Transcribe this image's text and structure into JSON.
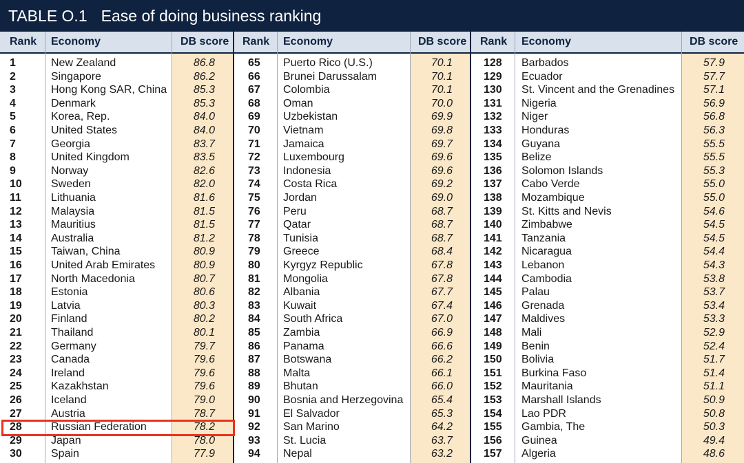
{
  "title": {
    "label": "TABLE O.1",
    "text": "Ease of doing business ranking"
  },
  "headers": {
    "rank": "Rank",
    "economy": "Economy",
    "score": "DB score"
  },
  "colors": {
    "title_bg": "#0f2340",
    "header_bg": "#d8e1ec",
    "score_bg": "#fbe8c8",
    "highlight": "#e8331c"
  },
  "highlighted_rank": "28",
  "columns": [
    [
      [
        "1",
        "New Zealand",
        "86.8"
      ],
      [
        "2",
        "Singapore",
        "86.2"
      ],
      [
        "3",
        "Hong Kong SAR, China",
        "85.3"
      ],
      [
        "4",
        "Denmark",
        "85.3"
      ],
      [
        "5",
        "Korea, Rep.",
        "84.0"
      ],
      [
        "6",
        "United States",
        "84.0"
      ],
      [
        "7",
        "Georgia",
        "83.7"
      ],
      [
        "8",
        "United Kingdom",
        "83.5"
      ],
      [
        "9",
        "Norway",
        "82.6"
      ],
      [
        "10",
        "Sweden",
        "82.0"
      ],
      [
        "11",
        "Lithuania",
        "81.6"
      ],
      [
        "12",
        "Malaysia",
        "81.5"
      ],
      [
        "13",
        "Mauritius",
        "81.5"
      ],
      [
        "14",
        "Australia",
        "81.2"
      ],
      [
        "15",
        "Taiwan, China",
        "80.9"
      ],
      [
        "16",
        "United Arab Emirates",
        "80.9"
      ],
      [
        "17",
        "North Macedonia",
        "80.7"
      ],
      [
        "18",
        "Estonia",
        "80.6"
      ],
      [
        "19",
        "Latvia",
        "80.3"
      ],
      [
        "20",
        "Finland",
        "80.2"
      ],
      [
        "21",
        "Thailand",
        "80.1"
      ],
      [
        "22",
        "Germany",
        "79.7"
      ],
      [
        "23",
        "Canada",
        "79.6"
      ],
      [
        "24",
        "Ireland",
        "79.6"
      ],
      [
        "25",
        "Kazakhstan",
        "79.6"
      ],
      [
        "26",
        "Iceland",
        "79.0"
      ],
      [
        "27",
        "Austria",
        "78.7"
      ],
      [
        "28",
        "Russian Federation",
        "78.2"
      ],
      [
        "29",
        "Japan",
        "78.0"
      ],
      [
        "30",
        "Spain",
        "77.9"
      ]
    ],
    [
      [
        "65",
        "Puerto Rico (U.S.)",
        "70.1"
      ],
      [
        "66",
        "Brunei Darussalam",
        "70.1"
      ],
      [
        "67",
        "Colombia",
        "70.1"
      ],
      [
        "68",
        "Oman",
        "70.0"
      ],
      [
        "69",
        "Uzbekistan",
        "69.9"
      ],
      [
        "70",
        "Vietnam",
        "69.8"
      ],
      [
        "71",
        "Jamaica",
        "69.7"
      ],
      [
        "72",
        "Luxembourg",
        "69.6"
      ],
      [
        "73",
        "Indonesia",
        "69.6"
      ],
      [
        "74",
        "Costa Rica",
        "69.2"
      ],
      [
        "75",
        "Jordan",
        "69.0"
      ],
      [
        "76",
        "Peru",
        "68.7"
      ],
      [
        "77",
        "Qatar",
        "68.7"
      ],
      [
        "78",
        "Tunisia",
        "68.7"
      ],
      [
        "79",
        "Greece",
        "68.4"
      ],
      [
        "80",
        "Kyrgyz Republic",
        "67.8"
      ],
      [
        "81",
        "Mongolia",
        "67.8"
      ],
      [
        "82",
        "Albania",
        "67.7"
      ],
      [
        "83",
        "Kuwait",
        "67.4"
      ],
      [
        "84",
        "South Africa",
        "67.0"
      ],
      [
        "85",
        "Zambia",
        "66.9"
      ],
      [
        "86",
        "Panama",
        "66.6"
      ],
      [
        "87",
        "Botswana",
        "66.2"
      ],
      [
        "88",
        "Malta",
        "66.1"
      ],
      [
        "89",
        "Bhutan",
        "66.0"
      ],
      [
        "90",
        "Bosnia and Herzegovina",
        "65.4"
      ],
      [
        "91",
        "El Salvador",
        "65.3"
      ],
      [
        "92",
        "San Marino",
        "64.2"
      ],
      [
        "93",
        "St. Lucia",
        "63.7"
      ],
      [
        "94",
        "Nepal",
        "63.2"
      ]
    ],
    [
      [
        "128",
        "Barbados",
        "57.9"
      ],
      [
        "129",
        "Ecuador",
        "57.7"
      ],
      [
        "130",
        "St. Vincent and the Grenadines",
        "57.1"
      ],
      [
        "131",
        "Nigeria",
        "56.9"
      ],
      [
        "132",
        "Niger",
        "56.8"
      ],
      [
        "133",
        "Honduras",
        "56.3"
      ],
      [
        "134",
        "Guyana",
        "55.5"
      ],
      [
        "135",
        "Belize",
        "55.5"
      ],
      [
        "136",
        "Solomon Islands",
        "55.3"
      ],
      [
        "137",
        "Cabo Verde",
        "55.0"
      ],
      [
        "138",
        "Mozambique",
        "55.0"
      ],
      [
        "139",
        "St. Kitts and Nevis",
        "54.6"
      ],
      [
        "140",
        "Zimbabwe",
        "54.5"
      ],
      [
        "141",
        "Tanzania",
        "54.5"
      ],
      [
        "142",
        "Nicaragua",
        "54.4"
      ],
      [
        "143",
        "Lebanon",
        "54.3"
      ],
      [
        "144",
        "Cambodia",
        "53.8"
      ],
      [
        "145",
        "Palau",
        "53.7"
      ],
      [
        "146",
        "Grenada",
        "53.4"
      ],
      [
        "147",
        "Maldives",
        "53.3"
      ],
      [
        "148",
        "Mali",
        "52.9"
      ],
      [
        "149",
        "Benin",
        "52.4"
      ],
      [
        "150",
        "Bolivia",
        "51.7"
      ],
      [
        "151",
        "Burkina Faso",
        "51.4"
      ],
      [
        "152",
        "Mauritania",
        "51.1"
      ],
      [
        "153",
        "Marshall Islands",
        "50.9"
      ],
      [
        "154",
        "Lao PDR",
        "50.8"
      ],
      [
        "155",
        "Gambia, The",
        "50.3"
      ],
      [
        "156",
        "Guinea",
        "49.4"
      ],
      [
        "157",
        "Algeria",
        "48.6"
      ]
    ]
  ]
}
